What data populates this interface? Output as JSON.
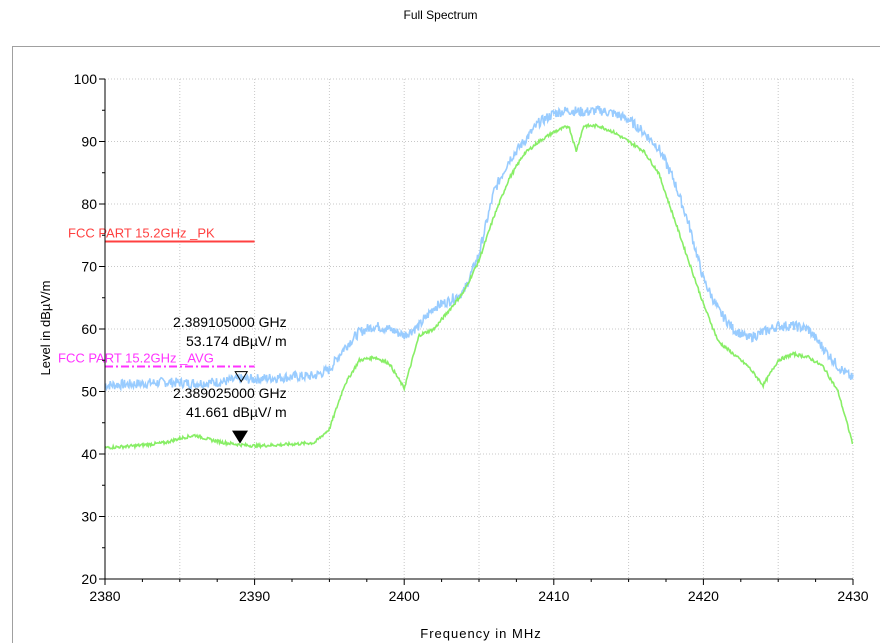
{
  "chart_data": {
    "type": "line",
    "title": "Full Spectrum",
    "xlabel": "Frequency in MHz",
    "ylabel": "Level in dBµV/m",
    "xlim": [
      2380,
      2430
    ],
    "ylim": [
      20,
      100
    ],
    "x_ticks": [
      2380,
      2390,
      2400,
      2410,
      2420,
      2430
    ],
    "y_ticks": [
      20,
      30,
      40,
      50,
      60,
      70,
      80,
      90,
      100
    ],
    "grid": true,
    "limit_lines": [
      {
        "name": "FCC PART 15.2GHz _PK",
        "value": 74,
        "x_range": [
          2380,
          2390
        ],
        "color": "#ff4040",
        "style": "solid"
      },
      {
        "name": "FCC PART 15.2GHz _AVG",
        "value": 54,
        "x_range": [
          2380,
          2390
        ],
        "color": "#ff33ff",
        "style": "dashdot"
      }
    ],
    "series": [
      {
        "color": "#99ccff",
        "x": [
          2380,
          2382,
          2384,
          2386,
          2388,
          2389,
          2390,
          2392,
          2394,
          2395,
          2396,
          2397,
          2398,
          2399,
          2400,
          2401,
          2402,
          2403,
          2404,
          2405,
          2406,
          2407,
          2408,
          2409,
          2410,
          2411,
          2412,
          2413,
          2414,
          2415,
          2416,
          2417,
          2418,
          2419,
          2420,
          2421,
          2422,
          2423,
          2424,
          2425,
          2426,
          2427,
          2428,
          2429,
          2430
        ],
        "y": [
          51,
          51.2,
          51.5,
          51.3,
          51.6,
          52,
          52,
          52.3,
          52.5,
          53.5,
          57,
          59.5,
          60.5,
          60,
          59,
          60.5,
          63.5,
          64.5,
          66,
          72,
          82,
          87,
          90,
          93,
          94.5,
          95,
          94.7,
          95,
          94.5,
          93.5,
          91.5,
          89,
          84,
          77,
          68,
          63,
          60,
          58.5,
          59.5,
          60.5,
          60.5,
          60,
          57,
          54,
          52
        ]
      },
      {
        "color": "#88ee66",
        "x": [
          2380,
          2382,
          2384,
          2385,
          2386,
          2387,
          2388,
          2389,
          2390,
          2392,
          2394,
          2395,
          2396,
          2397,
          2398,
          2399,
          2400,
          2401,
          2402,
          2403,
          2404,
          2405,
          2406,
          2407,
          2408,
          2409,
          2410,
          2411,
          2411.5,
          2412,
          2413,
          2414,
          2415,
          2416,
          2417,
          2418,
          2419,
          2420,
          2421,
          2422,
          2423,
          2424,
          2425,
          2426,
          2427,
          2428,
          2429,
          2430
        ],
        "y": [
          41,
          41.3,
          41.8,
          42.5,
          43,
          42.3,
          41.8,
          41.5,
          41.3,
          41.5,
          41.8,
          44,
          51,
          55,
          55.5,
          54.5,
          50.5,
          59,
          60,
          63,
          66,
          71,
          78,
          84,
          88,
          90,
          91.5,
          92.5,
          88.5,
          92.5,
          92.5,
          91.5,
          90,
          88.5,
          85,
          78,
          71,
          64,
          58,
          56,
          54,
          51,
          55,
          56,
          55.5,
          54,
          50,
          41.5
        ]
      }
    ],
    "markers": [
      {
        "x": 2389.105,
        "y": 53.174,
        "style": "open-triangle",
        "label_freq": "2.389105000 GHz",
        "label_level": "53.174  dBµV/ m"
      },
      {
        "x": 2389.025,
        "y": 41.661,
        "style": "filled-triangle",
        "label_freq": "2.389025000 GHz",
        "label_level": "41.661  dBµV/ m"
      }
    ]
  }
}
